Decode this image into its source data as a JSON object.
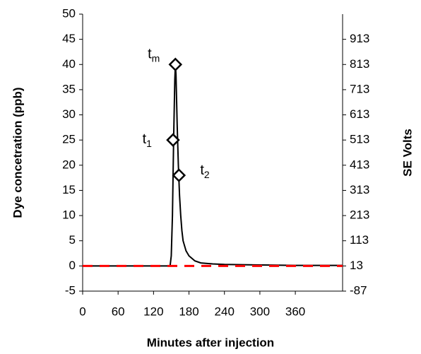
{
  "chart_data": {
    "type": "line",
    "x_label": "Minutes after injection",
    "y_label": "Dye concetration (ppb)",
    "y2_label": "SE Volts",
    "xlim": [
      0,
      440
    ],
    "xticks": [
      0,
      60,
      120,
      180,
      240,
      300,
      360
    ],
    "ylim": [
      -5,
      50
    ],
    "yticks": [
      -5,
      0,
      5,
      10,
      15,
      20,
      25,
      30,
      35,
      40,
      45,
      50
    ],
    "y2lim": [
      -87,
      1013
    ],
    "y2ticks": [
      -87,
      13,
      113,
      213,
      313,
      413,
      513,
      613,
      713,
      813,
      913
    ],
    "series": [
      {
        "color": "#000000",
        "style": "solid",
        "x": [
          0,
          60,
          120,
          148,
          150,
          152,
          154,
          156,
          157,
          158,
          160,
          162,
          164,
          166,
          168,
          170,
          175,
          180,
          190,
          200,
          220,
          240,
          300,
          360,
          440
        ],
        "values": [
          0,
          0,
          0,
          0,
          2,
          10,
          25,
          37,
          40,
          38,
          28,
          20,
          14,
          10,
          7,
          5,
          3,
          2,
          1,
          0.6,
          0.4,
          0.3,
          0.2,
          0.1,
          0.1
        ]
      },
      {
        "color": "#ff0000",
        "style": "dashed",
        "axis": "y2",
        "x": [
          0,
          440
        ],
        "values": [
          13,
          13
        ]
      },
      {
        "type": "scatter",
        "marker": "diamond",
        "color": "#000000",
        "x": [
          153,
          157,
          163
        ],
        "values": [
          25,
          40,
          18
        ],
        "labels": [
          {
            "base": "t",
            "sub": "1"
          },
          {
            "base": "t",
            "sub": "m"
          },
          {
            "base": "t",
            "sub": "2"
          }
        ]
      }
    ]
  }
}
